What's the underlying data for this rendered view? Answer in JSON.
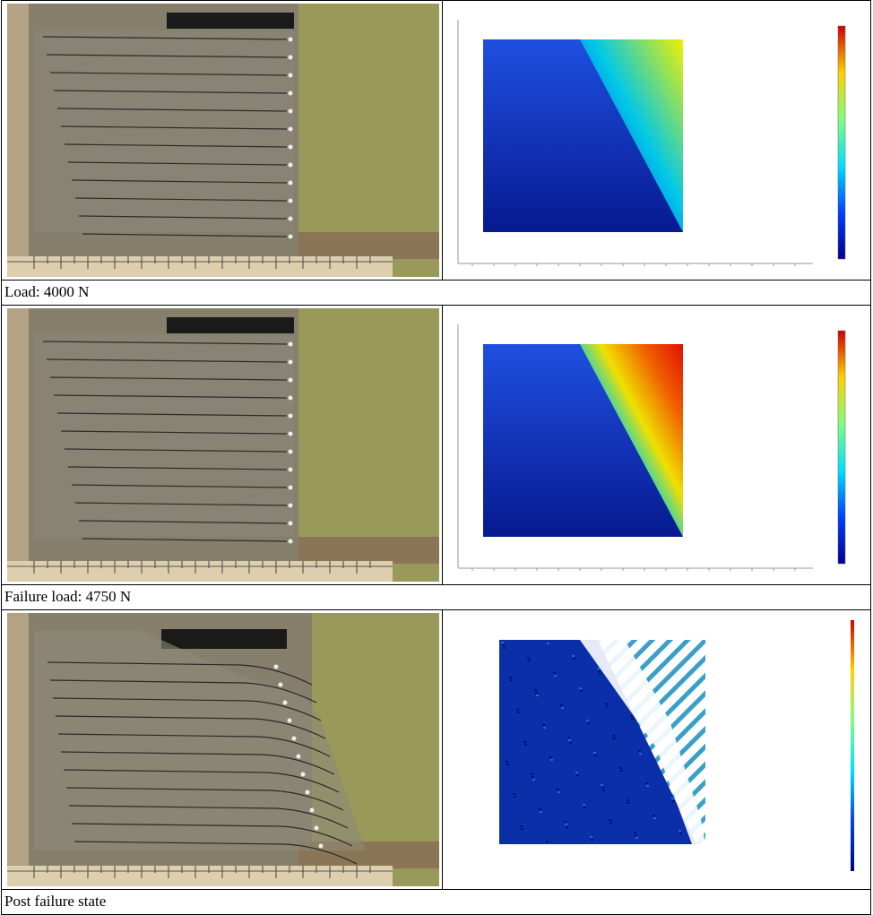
{
  "rows": [
    {
      "caption": "Load: 4000 N"
    },
    {
      "caption": "Failure load: 4750 N"
    },
    {
      "caption": "Post failure state"
    }
  ]
}
